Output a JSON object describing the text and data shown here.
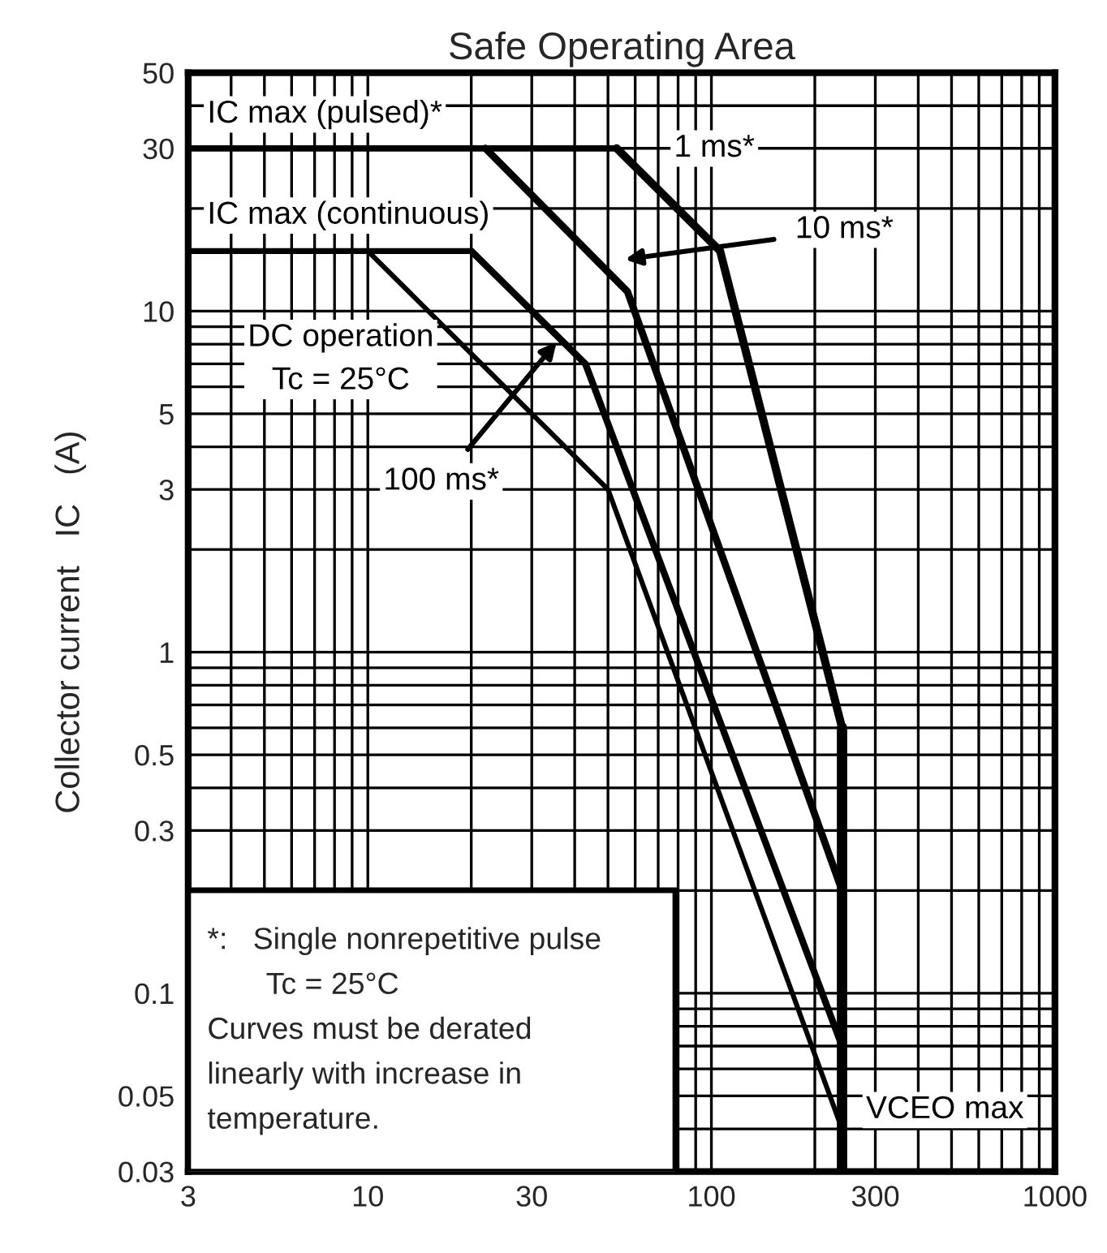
{
  "chart_data": {
    "type": "line",
    "title": "Safe Operating Area",
    "ylabel": "Collector current   IC   (A)",
    "log": "xy",
    "grid": true,
    "marker": "none",
    "line_style": "solid",
    "xlim": [
      3,
      1000
    ],
    "xticks": [
      3,
      10,
      30,
      100,
      300,
      1000
    ],
    "ylim": [
      0.03,
      50
    ],
    "yticks": [
      0.03,
      0.05,
      0.1,
      0.3,
      0.5,
      1,
      3,
      5,
      10,
      30,
      50
    ],
    "series": [
      {
        "name": "IC max (pulsed)*",
        "color": "#000000",
        "x": [
          3,
          53
        ],
        "values": [
          30,
          30
        ]
      },
      {
        "name": "1 ms*",
        "color": "#000000",
        "x": [
          53,
          106,
          240
        ],
        "values": [
          30,
          15,
          0.6
        ]
      },
      {
        "name": "10 ms*",
        "color": "#000000",
        "x": [
          22,
          57,
          240
        ],
        "values": [
          30,
          11.4,
          0.2
        ]
      },
      {
        "name": "IC max (continuous)",
        "color": "#000000",
        "x": [
          3,
          20
        ],
        "values": [
          15,
          15
        ]
      },
      {
        "name": "100 ms*",
        "color": "#000000",
        "x": [
          20,
          43,
          240
        ],
        "values": [
          15,
          7,
          0.07
        ]
      },
      {
        "name": "DC operation\nTc = 25°C",
        "color": "#000000",
        "x": [
          10,
          50,
          240
        ],
        "values": [
          15,
          3,
          0.04
        ]
      },
      {
        "name": "VCEO max",
        "color": "#000000",
        "x": [
          240,
          240
        ],
        "values": [
          0.6,
          0.03
        ]
      }
    ],
    "annotations": [
      "*:   Single nonrepetitive pulse\n       Tc = 25°C\nCurves must be derated\nlinearly with increase in\ntemperature."
    ]
  }
}
